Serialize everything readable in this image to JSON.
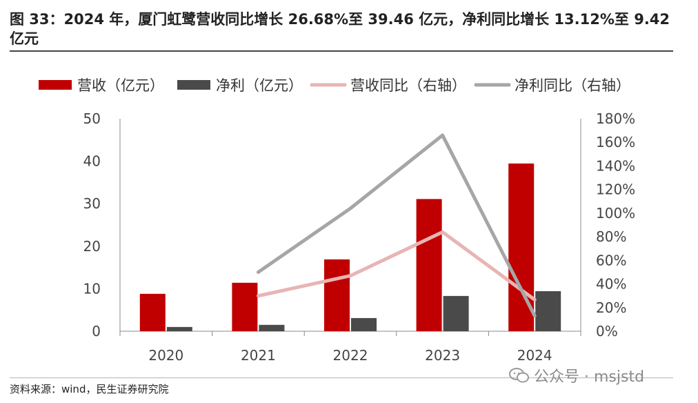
{
  "title": "图 33：2024 年，厦门虹鹭营收同比增长 26.68%至 39.46 亿元，净利同比增长 13.12%至 9.42 亿元",
  "source": "资料来源：wind，民生证券研究院",
  "watermark": "公众号 · msjstd",
  "colors": {
    "revenue": "#c00000",
    "net_profit": "#4a4a4a",
    "revenue_yoy": "#e8b4b4",
    "profit_yoy": "#a6a6a6"
  },
  "chart_data": {
    "type": "bar",
    "categories": [
      "2020",
      "2021",
      "2022",
      "2023",
      "2024"
    ],
    "series": [
      {
        "name": "营收（亿元）",
        "kind": "bar",
        "axis": "left",
        "values": [
          8.8,
          11.4,
          16.9,
          31.1,
          39.46
        ]
      },
      {
        "name": "净利（亿元）",
        "kind": "bar",
        "axis": "left",
        "values": [
          1.0,
          1.5,
          3.1,
          8.3,
          9.42
        ]
      },
      {
        "name": "营收同比（右轴）",
        "kind": "line",
        "axis": "right",
        "values": [
          null,
          30,
          47,
          84,
          26.68
        ]
      },
      {
        "name": "净利同比（右轴）",
        "kind": "line",
        "axis": "right",
        "values": [
          null,
          50,
          104,
          166,
          13.12
        ]
      }
    ],
    "ylim_left": [
      0,
      50
    ],
    "yticks_left": [
      0,
      10,
      20,
      30,
      40,
      50
    ],
    "ylim_right": [
      0,
      180
    ],
    "yticks_right": [
      "0%",
      "20%",
      "40%",
      "60%",
      "80%",
      "100%",
      "120%",
      "140%",
      "160%",
      "180%"
    ],
    "grid": false,
    "legend_position": "top"
  }
}
